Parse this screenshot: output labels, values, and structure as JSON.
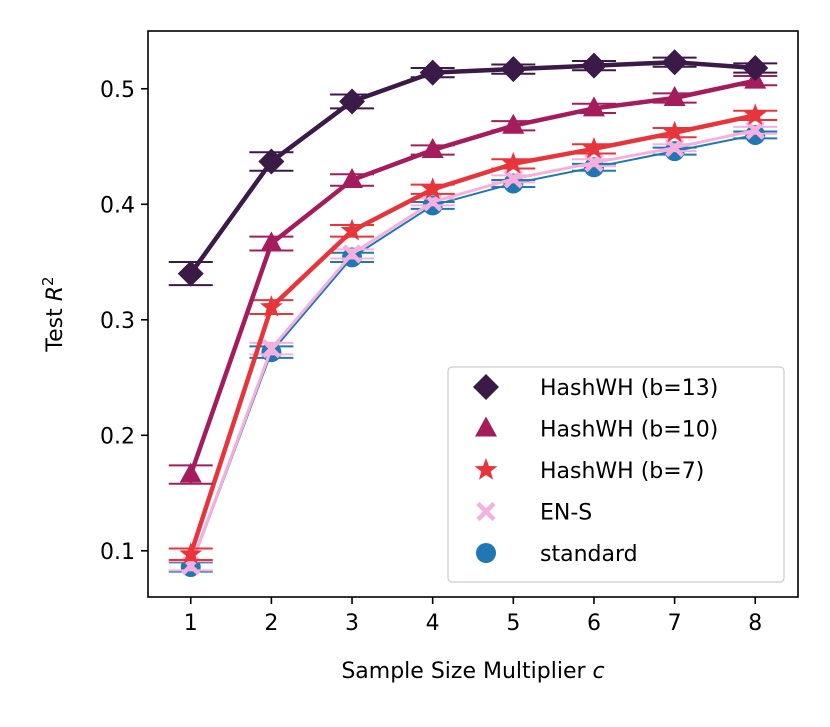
{
  "chart_data": {
    "type": "line",
    "title": "",
    "xlabel": "Sample Size Multiplier",
    "xlabel_var": "c",
    "ylabel": "Test",
    "ylabel_var": "R",
    "ylabel_sup": "2",
    "x": [
      1,
      2,
      3,
      4,
      5,
      6,
      7,
      8
    ],
    "xticks": [
      "1",
      "2",
      "3",
      "4",
      "5",
      "6",
      "7",
      "8"
    ],
    "yticks": [
      "0.1",
      "0.2",
      "0.3",
      "0.4",
      "0.5"
    ],
    "ytick_values": [
      0.1,
      0.2,
      0.3,
      0.4,
      0.5
    ],
    "xlim": [
      0.47,
      8.53
    ],
    "ylim": [
      0.06,
      0.55
    ],
    "legend_position": "lower-right",
    "series": [
      {
        "name": "standard",
        "marker": "circle",
        "color": "#1f77b4",
        "values": [
          0.086,
          0.272,
          0.354,
          0.399,
          0.418,
          0.432,
          0.446,
          0.46
        ],
        "errors": [
          0.004,
          0.005,
          0.004,
          0.003,
          0.003,
          0.003,
          0.003,
          0.003
        ]
      },
      {
        "name": "EN-S",
        "marker": "x",
        "color": "#f7b0de",
        "values": [
          0.087,
          0.275,
          0.357,
          0.402,
          0.422,
          0.436,
          0.449,
          0.464
        ],
        "errors": [
          0.004,
          0.005,
          0.004,
          0.003,
          0.003,
          0.003,
          0.003,
          0.003
        ]
      },
      {
        "name": "HashWH (b=7)",
        "marker": "star",
        "color": "#e8353c",
        "values": [
          0.097,
          0.311,
          0.377,
          0.413,
          0.435,
          0.448,
          0.462,
          0.477
        ],
        "errors": [
          0.005,
          0.006,
          0.005,
          0.004,
          0.004,
          0.004,
          0.004,
          0.004
        ]
      },
      {
        "name": "HashWH (b=10)",
        "marker": "triangle",
        "color": "#a51c5c",
        "values": [
          0.166,
          0.366,
          0.421,
          0.447,
          0.468,
          0.483,
          0.492,
          0.507
        ],
        "errors": [
          0.008,
          0.006,
          0.005,
          0.004,
          0.004,
          0.004,
          0.004,
          0.004
        ]
      },
      {
        "name": "HashWH (b=13)",
        "marker": "diamond",
        "color": "#3b1a47",
        "values": [
          0.34,
          0.437,
          0.489,
          0.514,
          0.517,
          0.52,
          0.523,
          0.518
        ],
        "errors": [
          0.01,
          0.008,
          0.006,
          0.004,
          0.004,
          0.004,
          0.004,
          0.004
        ]
      }
    ],
    "legend_order": [
      "HashWH (b=13)",
      "HashWH (b=10)",
      "HashWH (b=7)",
      "EN-S",
      "standard"
    ]
  }
}
